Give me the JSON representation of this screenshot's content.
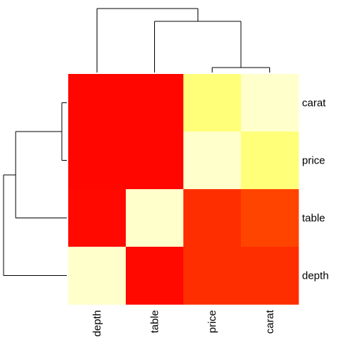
{
  "chart_data": {
    "type": "heatmap",
    "columns": [
      "depth",
      "table",
      "price",
      "carat"
    ],
    "rows": [
      "carat",
      "price",
      "table",
      "depth"
    ],
    "values": [
      [
        0.02,
        0.02,
        0.96,
        1.0
      ],
      [
        0.02,
        0.02,
        1.0,
        0.96
      ],
      [
        0.03,
        1.0,
        0.16,
        0.24
      ],
      [
        1.0,
        0.03,
        0.16,
        0.16
      ]
    ],
    "color_scale": "heat",
    "colors": {
      "low": "#FF0000",
      "mid": "#FF8000",
      "high": "#FFFF00",
      "max": "#FFFFCC"
    },
    "row_dendrogram": "left",
    "column_dendrogram": "top",
    "grid": false,
    "legend": "none"
  }
}
